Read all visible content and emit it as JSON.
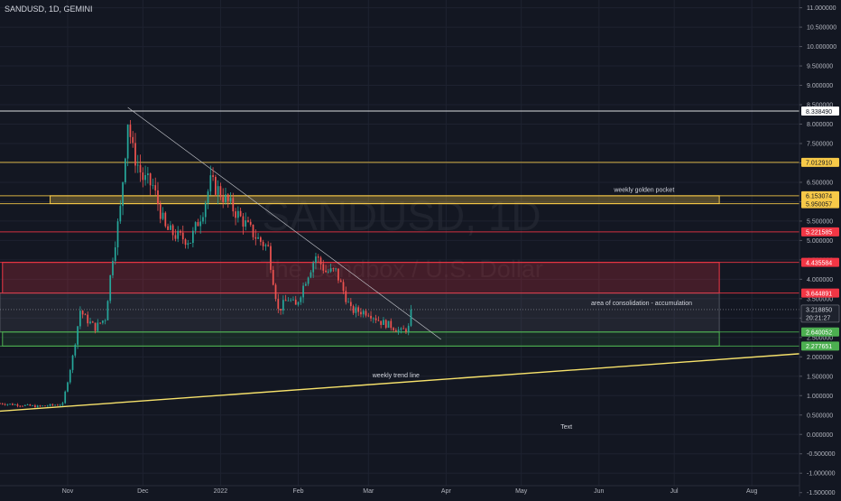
{
  "header": {
    "symbol_title": "SANDUSD, 1D, GEMINI"
  },
  "watermark": {
    "symbol": "SANDUSD, 1D",
    "description": "The Sandbox / U.S. Dollar"
  },
  "colors": {
    "background": "#131722",
    "grid": "#1e2230",
    "axis_text": "#b2b5be",
    "up": "#26a69a",
    "down": "#ef5350",
    "gold": "#f7c948",
    "red": "#f23645",
    "green": "#4caf50",
    "white": "#d1d4dc"
  },
  "chart_data": {
    "type": "candlestick",
    "y_axis": {
      "range": [
        -1.6,
        11.2
      ],
      "tick_labels": [
        "11.000000",
        "10.500000",
        "10.000000",
        "9.500000",
        "9.000000",
        "8.500000",
        "8.000000",
        "7.500000",
        "7.000000",
        "6.500000",
        "6.000000",
        "5.500000",
        "5.000000",
        "4.500000",
        "4.000000",
        "3.500000",
        "3.000000",
        "2.500000",
        "2.000000",
        "1.500000",
        "1.000000",
        "0.500000",
        "0.000000",
        "-0.500000",
        "-1.000000",
        "-1.500000"
      ],
      "tick_values": [
        11,
        10.5,
        10,
        9.5,
        9,
        8.5,
        8,
        7.5,
        7,
        6.5,
        6,
        5.5,
        5,
        4.5,
        4,
        3.5,
        3,
        2.5,
        2,
        1.5,
        1,
        0.5,
        0,
        -0.5,
        -1,
        -1.5
      ]
    },
    "x_axis": {
      "range": [
        "2021-10-05",
        "2022-08-20"
      ],
      "tick_labels": [
        "Nov",
        "Dec",
        "2022",
        "Feb",
        "Mar",
        "Apr",
        "May",
        "Jun",
        "Jul",
        "Aug"
      ],
      "tick_dates": [
        "2021-11-01",
        "2021-12-01",
        "2022-01-01",
        "2022-02-01",
        "2022-03-01",
        "2022-04-01",
        "2022-05-01",
        "2022-06-01",
        "2022-07-01",
        "2022-08-01"
      ]
    },
    "price_levels": [
      {
        "value": 8.33849,
        "label": "8.338490",
        "color": "#ffffff"
      },
      {
        "value": 7.01291,
        "label": "7.012910",
        "color": "#f7c948"
      },
      {
        "value": 6.153074,
        "label": "6.153074",
        "color": "#f7c948"
      },
      {
        "value": 5.950057,
        "label": "5.950057",
        "color": "#f7c948"
      },
      {
        "value": 5.221585,
        "label": "5.221585",
        "color": "#f23645"
      },
      {
        "value": 4.435584,
        "label": "4.435584",
        "color": "#f23645"
      },
      {
        "value": 3.644891,
        "label": "3.644891",
        "color": "#f23645"
      },
      {
        "value": 2.640052,
        "label": "2.640052",
        "color": "#4caf50"
      },
      {
        "value": 2.277651,
        "label": "2.277651",
        "color": "#4caf50"
      }
    ],
    "current_price": {
      "value": 3.21885,
      "label": "3.218850",
      "countdown": "20:21:27"
    },
    "zones": [
      {
        "name": "weekly golden pocket",
        "top": 6.153074,
        "bottom": 5.950057,
        "start": "2021-10-25",
        "end": "2022-07-19",
        "fill": "rgba(247,201,72,0.28)",
        "stroke": "#f7c948"
      },
      {
        "name": "red zone",
        "top": 4.435584,
        "bottom": 3.644891,
        "start": "2021-10-06",
        "end": "2022-07-19",
        "fill": "rgba(242,54,69,0.22)",
        "stroke": "#f23645"
      },
      {
        "name": "area of consolidation - accumulation",
        "top": 3.644891,
        "bottom": 2.640052,
        "start": "2021-10-05",
        "end": "2022-07-19",
        "fill": "rgba(120,123,134,0.15)",
        "stroke": "#50535e"
      },
      {
        "name": "green zone",
        "top": 2.640052,
        "bottom": 2.277651,
        "start": "2021-10-06",
        "end": "2022-07-19",
        "fill": "rgba(76,175,80,0.12)",
        "stroke": "#4caf50"
      }
    ],
    "trend_lines": [
      {
        "name": "weekly trend line",
        "from": [
          "2021-10-05",
          0.6
        ],
        "to": [
          "2022-08-20",
          2.08
        ],
        "color": "#f7e26b",
        "width": 1.4
      },
      {
        "name": "descending line",
        "from": [
          "2021-11-25",
          8.43
        ],
        "to": [
          "2022-03-30",
          2.45
        ],
        "color": "#c9cbd1",
        "width": 0.6
      }
    ],
    "annotations": [
      {
        "text": "weekly golden pocket",
        "date": "2022-06-19",
        "price": 6.25
      },
      {
        "text": "area of consolidation - accumulation",
        "date": "2022-06-18",
        "price": 3.33
      },
      {
        "text": "weekly trend line",
        "date": "2022-03-12",
        "price": 1.47
      },
      {
        "text": "Text",
        "date": "2022-05-19",
        "price": 0.15
      }
    ],
    "anchors": [
      [
        "2021-10-05",
        0.8
      ],
      [
        "2021-10-20",
        0.72
      ],
      [
        "2021-10-30",
        0.78
      ],
      [
        "2021-11-03",
        2.0
      ],
      [
        "2021-11-06",
        3.2
      ],
      [
        "2021-11-08",
        3.0
      ],
      [
        "2021-11-12",
        2.75
      ],
      [
        "2021-11-16",
        3.0
      ],
      [
        "2021-11-19",
        4.6
      ],
      [
        "2021-11-22",
        5.8
      ],
      [
        "2021-11-25",
        8.1
      ],
      [
        "2021-11-27",
        7.3
      ],
      [
        "2021-12-01",
        6.6
      ],
      [
        "2021-12-05",
        6.4
      ],
      [
        "2021-12-10",
        5.3
      ],
      [
        "2021-12-15",
        5.1
      ],
      [
        "2021-12-20",
        5.0
      ],
      [
        "2021-12-25",
        5.8
      ],
      [
        "2021-12-28",
        6.5
      ],
      [
        "2021-12-31",
        6.3
      ],
      [
        "2022-01-05",
        5.9
      ],
      [
        "2022-01-10",
        5.5
      ],
      [
        "2022-01-15",
        5.1
      ],
      [
        "2022-01-20",
        4.8
      ],
      [
        "2022-01-24",
        3.2
      ],
      [
        "2022-01-28",
        3.5
      ],
      [
        "2022-01-31",
        3.3
      ],
      [
        "2022-02-04",
        4.0
      ],
      [
        "2022-02-08",
        4.6
      ],
      [
        "2022-02-12",
        4.2
      ],
      [
        "2022-02-16",
        4.2
      ],
      [
        "2022-02-22",
        3.2
      ],
      [
        "2022-03-01",
        3.15
      ],
      [
        "2022-03-06",
        2.9
      ],
      [
        "2022-03-10",
        2.8
      ],
      [
        "2022-03-14",
        2.65
      ],
      [
        "2022-03-17",
        2.75
      ],
      [
        "2022-03-18",
        3.22
      ]
    ]
  }
}
